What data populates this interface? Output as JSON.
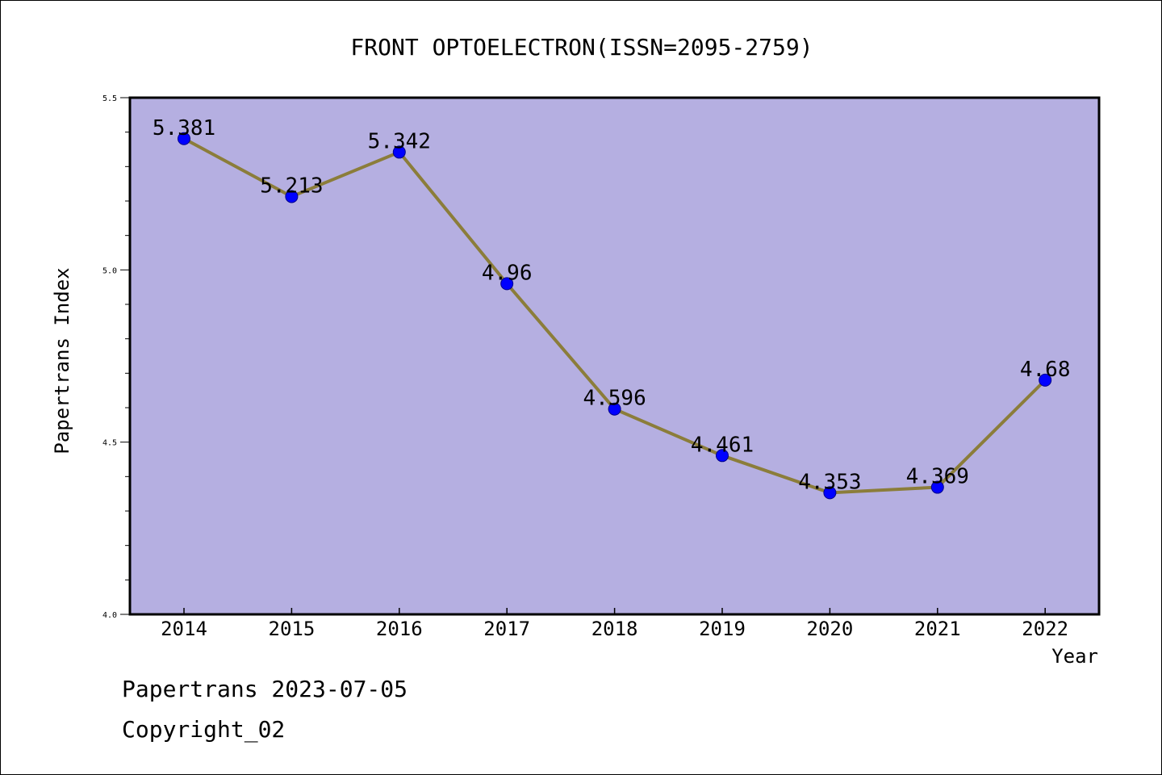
{
  "chart_data": {
    "type": "line",
    "title": "FRONT OPTOELECTRON(ISSN=2095-2759)",
    "xlabel": "Year",
    "ylabel": "Papertrans Index",
    "categories": [
      "2014",
      "2015",
      "2016",
      "2017",
      "2018",
      "2019",
      "2020",
      "2021",
      "2022"
    ],
    "series": [
      {
        "values": [
          5.381,
          5.213,
          5.342,
          4.96,
          4.596,
          4.461,
          4.353,
          4.369,
          4.68
        ],
        "labels": [
          "5.381",
          "5.213",
          "5.342",
          "4.96",
          "4.596",
          "4.461",
          "4.353",
          "4.369",
          "4.68"
        ]
      }
    ],
    "ylim": [
      4.0,
      5.5
    ],
    "yticks": [
      "4.0",
      "4.5",
      "5.0",
      "5.5"
    ],
    "grid": false,
    "colors": {
      "plot_background": "#b5afe1",
      "line": "#8b7d3a",
      "marker": "#0000ff",
      "axes": "#000000"
    }
  },
  "footer": {
    "date_line": "Papertrans 2023-07-05",
    "copyright_line": "Copyright_02"
  }
}
